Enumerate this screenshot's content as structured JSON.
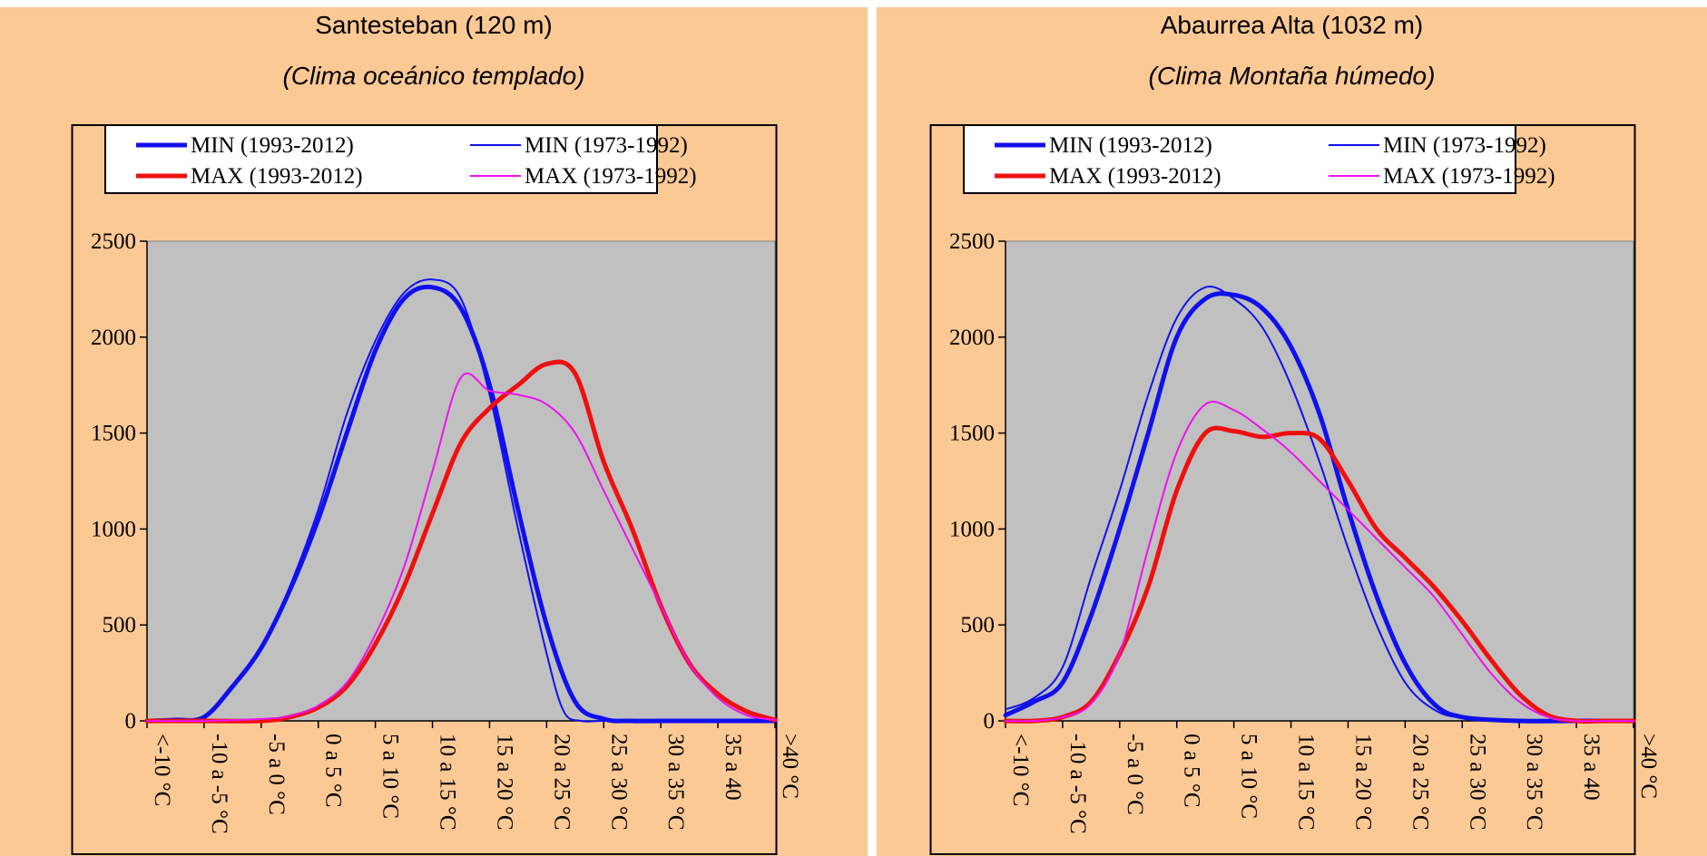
{
  "colors": {
    "panel_background": "#fcc995",
    "plot_area": "#c0c0c0",
    "min_recent": "#1010ee",
    "min_old": "#1010ee",
    "max_recent": "#ee1010",
    "max_old": "#ee10ee"
  },
  "panels": [
    {
      "title": "Santesteban (120 m)",
      "subtitle": "(Clima oceánico templado)"
    },
    {
      "title": "Abaurrea Alta (1032 m)",
      "subtitle": "(Clima Montaña húmedo)"
    }
  ],
  "chart_data": [
    {
      "type": "line",
      "title": "Santesteban (120 m)",
      "subtitle": "(Clima oceánico templado)",
      "categories": [
        "<-10 °C",
        "-10 a -5 °C",
        "-5 a 0 °C",
        "0 a 5 °C",
        "5 a 10 °C",
        "10 a 15 °C",
        "15 a 20 °C",
        "20 a 25 °C",
        "25 a 30 °C",
        "30 a 35 °C",
        "35 a 40",
        ">40 °C"
      ],
      "ylim": [
        0,
        2500
      ],
      "yticks": [
        0,
        500,
        1000,
        1500,
        2000,
        2500
      ],
      "grid": false,
      "legend_position": "top",
      "series": [
        {
          "name": "MIN (1993-2012)",
          "color": "#1010ee",
          "width": 5,
          "x": [
            0,
            0.5,
            1,
            1.5,
            2,
            2.5,
            3,
            3.5,
            4,
            4.5,
            5,
            5.5,
            6,
            6.5,
            7,
            7.5,
            8,
            8.5,
            9,
            9.5,
            10,
            11
          ],
          "y": [
            0,
            5,
            20,
            180,
            380,
            680,
            1050,
            1500,
            1930,
            2200,
            2260,
            2150,
            1750,
            1100,
            500,
            100,
            10,
            0,
            0,
            0,
            0,
            0
          ]
        },
        {
          "name": "MIN (1973-1992)",
          "color": "#1010ee",
          "width": 2,
          "x": [
            0,
            0.5,
            1,
            1.5,
            2,
            2.5,
            3,
            3.5,
            4,
            4.5,
            5,
            5.5,
            6,
            6.5,
            7,
            7.3,
            7.6,
            8,
            9,
            10,
            11
          ],
          "y": [
            0,
            5,
            20,
            180,
            370,
            700,
            1100,
            1600,
            1980,
            2230,
            2300,
            2200,
            1700,
            1000,
            350,
            50,
            0,
            0,
            0,
            0,
            0
          ]
        },
        {
          "name": "MAX (1993-2012)",
          "color": "#ee1010",
          "width": 5,
          "x": [
            0,
            1,
            2,
            2.5,
            3,
            3.5,
            4,
            4.5,
            5,
            5.5,
            6,
            6.5,
            7,
            7.5,
            8,
            8.5,
            9,
            9.5,
            10,
            10.5,
            11
          ],
          "y": [
            0,
            0,
            0,
            20,
            70,
            180,
            400,
            700,
            1080,
            1450,
            1630,
            1750,
            1860,
            1810,
            1350,
            1000,
            600,
            300,
            140,
            50,
            5
          ]
        },
        {
          "name": "MAX (1973-1992)",
          "color": "#ee10ee",
          "width": 2,
          "x": [
            0,
            1,
            2,
            2.5,
            3,
            3.5,
            4,
            4.5,
            5,
            5.5,
            6,
            6.5,
            7,
            7.5,
            8,
            8.5,
            9,
            9.5,
            10,
            10.5,
            11
          ],
          "y": [
            0,
            0,
            10,
            25,
            80,
            200,
            450,
            800,
            1300,
            1790,
            1720,
            1700,
            1650,
            1500,
            1200,
            900,
            600,
            300,
            120,
            30,
            5
          ]
        }
      ]
    },
    {
      "type": "line",
      "title": "Abaurrea Alta (1032 m)",
      "subtitle": "(Clima Montaña húmedo)",
      "categories": [
        "<-10 °C",
        "-10 a -5 °C",
        "-5 a 0 °C",
        "0 a 5 °C",
        "5 a 10 °C",
        "10 a 15 °C",
        "15 a 20 °C",
        "20 a 25 °C",
        "25 a 30 °C",
        "30 a 35 °C",
        "35 a 40",
        ">40 °C"
      ],
      "ylim": [
        0,
        2500
      ],
      "yticks": [
        0,
        500,
        1000,
        1500,
        2000,
        2500
      ],
      "grid": false,
      "legend_position": "top",
      "series": [
        {
          "name": "MIN (1993-2012)",
          "color": "#1010ee",
          "width": 5,
          "x": [
            0,
            0.5,
            1,
            1.5,
            2,
            2.5,
            3,
            3.5,
            4,
            4.5,
            5,
            5.5,
            6,
            6.5,
            7,
            7.5,
            8,
            9,
            10,
            11
          ],
          "y": [
            30,
            100,
            200,
            550,
            1000,
            1500,
            2000,
            2200,
            2220,
            2150,
            1950,
            1600,
            1100,
            650,
            300,
            90,
            20,
            0,
            0,
            0
          ]
        },
        {
          "name": "MIN (1973-1992)",
          "color": "#1010ee",
          "width": 2,
          "x": [
            0,
            0.5,
            1,
            1.5,
            2,
            2.5,
            3,
            3.5,
            4,
            4.5,
            5,
            5.5,
            6,
            6.5,
            7,
            7.5,
            8,
            9,
            10,
            11
          ],
          "y": [
            60,
            120,
            280,
            750,
            1200,
            1700,
            2100,
            2260,
            2200,
            2050,
            1750,
            1350,
            900,
            500,
            200,
            60,
            15,
            0,
            0,
            0
          ]
        },
        {
          "name": "MAX (1993-2012)",
          "color": "#ee1010",
          "width": 5,
          "x": [
            0,
            0.5,
            1,
            1.5,
            2,
            2.5,
            3,
            3.5,
            4,
            4.5,
            5,
            5.5,
            6,
            6.5,
            7,
            7.5,
            8,
            8.5,
            9,
            9.5,
            10,
            10.5,
            11
          ],
          "y": [
            0,
            0,
            20,
            100,
            350,
            700,
            1200,
            1500,
            1510,
            1480,
            1500,
            1470,
            1250,
            1000,
            850,
            700,
            520,
            320,
            140,
            30,
            0,
            0,
            0
          ]
        },
        {
          "name": "MAX (1973-1992)",
          "color": "#ee10ee",
          "width": 2,
          "x": [
            0,
            0.5,
            1,
            1.5,
            2,
            2.5,
            3,
            3.5,
            4,
            4.5,
            5,
            5.5,
            6,
            6.5,
            7,
            7.5,
            8,
            8.5,
            9,
            9.5,
            10,
            10.5,
            11
          ],
          "y": [
            0,
            0,
            20,
            90,
            350,
            900,
            1400,
            1650,
            1620,
            1520,
            1400,
            1250,
            1100,
            950,
            800,
            650,
            450,
            250,
            100,
            20,
            0,
            0,
            0
          ]
        }
      ]
    }
  ]
}
